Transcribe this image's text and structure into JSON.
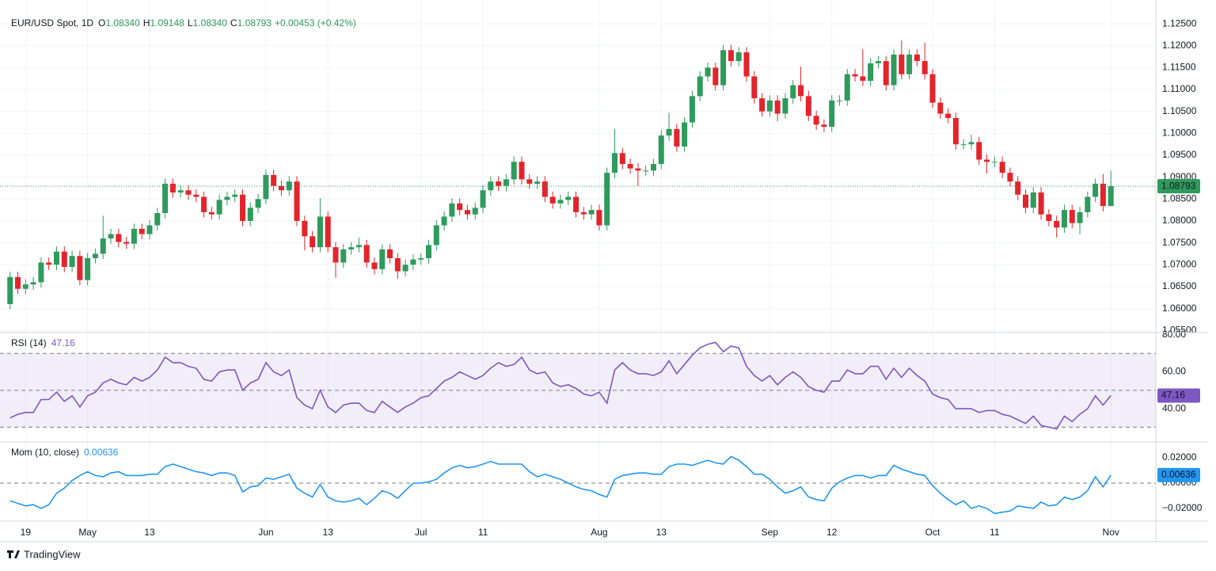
{
  "chart_data": [
    {
      "type": "candlestick",
      "title": "EUR/USD Spot, 1D",
      "header": [
        {
          "label": "O",
          "value": "1.08340"
        },
        {
          "label": "H",
          "value": "1.09148"
        },
        {
          "label": "L",
          "value": "1.08340"
        },
        {
          "label": "C",
          "value": "1.08793"
        }
      ],
      "change": "+0.00453 (+0.42%)",
      "up_color": "#2e9a5c",
      "down_color": "#e3242b",
      "xlim": [
        -1.3,
        147.8
      ],
      "xticks": [
        {
          "value": 2,
          "label": "19"
        },
        {
          "value": 10,
          "label": "May"
        },
        {
          "value": 18,
          "label": "13"
        },
        {
          "value": 33,
          "label": "Jun"
        },
        {
          "value": 41,
          "label": "13"
        },
        {
          "value": 53,
          "label": "Jul"
        },
        {
          "value": 61,
          "label": "11"
        },
        {
          "value": 76,
          "label": "Aug"
        },
        {
          "value": 84,
          "label": "13"
        },
        {
          "value": 98,
          "label": "Sep"
        },
        {
          "value": 106,
          "label": "12"
        },
        {
          "value": 119,
          "label": "Oct"
        },
        {
          "value": 127,
          "label": "11"
        },
        {
          "value": 142,
          "label": "Nov"
        }
      ],
      "ylim": [
        1.0545,
        1.129
      ],
      "yticks": [
        {
          "value": 1.055,
          "label": "1.05500"
        },
        {
          "value": 1.06,
          "label": "1.06000"
        },
        {
          "value": 1.065,
          "label": "1.06500"
        },
        {
          "value": 1.07,
          "label": "1.07000"
        },
        {
          "value": 1.075,
          "label": "1.07500"
        },
        {
          "value": 1.08,
          "label": "1.08000"
        },
        {
          "value": 1.085,
          "label": "1.08500"
        },
        {
          "value": 1.09,
          "label": "1.09000"
        },
        {
          "value": 1.095,
          "label": "1.09500"
        },
        {
          "value": 1.1,
          "label": "1.10000"
        },
        {
          "value": 1.105,
          "label": "1.10500"
        },
        {
          "value": 1.11,
          "label": "1.11000"
        },
        {
          "value": 1.115,
          "label": "1.11500"
        },
        {
          "value": 1.12,
          "label": "1.12000"
        },
        {
          "value": 1.125,
          "label": "1.12500"
        }
      ],
      "last_label": "1.08793",
      "open": [
        1.061,
        1.0672,
        1.0645,
        1.0655,
        1.066,
        1.0705,
        1.07,
        1.073,
        1.0695,
        1.072,
        1.0665,
        1.0715,
        1.0725,
        1.076,
        1.077,
        1.0752,
        1.0748,
        1.0782,
        1.077,
        1.079,
        1.0818,
        1.0885,
        1.0865,
        1.087,
        1.086,
        1.0855,
        1.082,
        1.0815,
        1.0848,
        1.0855,
        1.086,
        1.08,
        1.083,
        1.085,
        1.0905,
        1.088,
        1.087,
        1.089,
        1.08,
        1.0765,
        1.074,
        1.081,
        1.074,
        1.0705,
        1.0735,
        1.074,
        1.0745,
        1.0705,
        1.069,
        1.0735,
        1.0715,
        1.0685,
        1.07,
        1.0712,
        1.0715,
        1.0745,
        1.079,
        1.081,
        1.084,
        1.0825,
        1.0815,
        1.083,
        1.087,
        1.089,
        1.088,
        1.0895,
        1.0935,
        1.0895,
        1.0885,
        1.089,
        1.0855,
        1.084,
        1.0848,
        1.0855,
        1.082,
        1.0815,
        1.0825,
        1.079,
        1.091,
        1.0955,
        1.093,
        1.092,
        1.0915,
        1.0915,
        1.093,
        1.0995,
        1.101,
        1.097,
        1.1025,
        1.1085,
        1.113,
        1.115,
        1.111,
        1.119,
        1.1165,
        1.1185,
        1.113,
        1.108,
        1.105,
        1.1075,
        1.1045,
        1.108,
        1.111,
        1.1085,
        1.104,
        1.102,
        1.1015,
        1.1075,
        1.1075,
        1.1135,
        1.113,
        1.112,
        1.116,
        1.1165,
        1.111,
        1.118,
        1.1135,
        1.118,
        1.1165,
        1.1135,
        1.107,
        1.1045,
        1.1035,
        1.0975,
        1.0975,
        1.098,
        1.094,
        1.0935,
        1.0935,
        1.091,
        1.089,
        1.086,
        1.083,
        1.0865,
        1.0815,
        1.08,
        1.0785,
        1.0825,
        1.0795,
        1.082,
        1.0855,
        1.0885,
        1.0834
      ],
      "high": [
        1.0684,
        1.0684,
        1.0667,
        1.0672,
        1.0717,
        1.0717,
        1.0742,
        1.0742,
        1.0732,
        1.0732,
        1.0727,
        1.0737,
        1.0812,
        1.0782,
        1.0782,
        1.0764,
        1.0794,
        1.0794,
        1.0802,
        1.083,
        1.0897,
        1.0897,
        1.0882,
        1.0882,
        1.0872,
        1.0867,
        1.0832,
        1.086,
        1.0867,
        1.0872,
        1.0872,
        1.0842,
        1.0862,
        1.0917,
        1.0917,
        1.0892,
        1.0902,
        1.0902,
        1.0812,
        1.0777,
        1.0852,
        1.0822,
        1.0752,
        1.0747,
        1.0752,
        1.0762,
        1.0757,
        1.0717,
        1.0747,
        1.0747,
        1.0727,
        1.0712,
        1.0724,
        1.0727,
        1.0757,
        1.0802,
        1.0822,
        1.0852,
        1.0852,
        1.0837,
        1.0842,
        1.0882,
        1.0902,
        1.0902,
        1.0907,
        1.0947,
        1.0947,
        1.0907,
        1.0902,
        1.0902,
        1.0867,
        1.086,
        1.0867,
        1.0867,
        1.0832,
        1.0837,
        1.0837,
        1.0922,
        1.101,
        1.0967,
        1.0942,
        1.0932,
        1.0927,
        1.0942,
        1.1007,
        1.1047,
        1.1022,
        1.1037,
        1.1097,
        1.1142,
        1.1162,
        1.1162,
        1.1202,
        1.1202,
        1.1197,
        1.1197,
        1.1142,
        1.1092,
        1.1087,
        1.1087,
        1.1092,
        1.1122,
        1.1152,
        1.1097,
        1.1052,
        1.1032,
        1.1087,
        1.1087,
        1.1147,
        1.1147,
        1.1192,
        1.1172,
        1.1177,
        1.1177,
        1.1192,
        1.1212,
        1.1192,
        1.1192,
        1.1207,
        1.1147,
        1.1082,
        1.1057,
        1.1047,
        1.0987,
        1.0997,
        1.0992,
        1.0952,
        1.0947,
        1.0947,
        1.0922,
        1.0902,
        1.0872,
        1.0877,
        1.0877,
        1.0827,
        1.0812,
        1.0837,
        1.0837,
        1.0832,
        1.0867,
        1.0897,
        1.0907,
        1.09148
      ],
      "low": [
        1.0598,
        1.0633,
        1.0633,
        1.0643,
        1.0648,
        1.0688,
        1.0688,
        1.0683,
        1.0683,
        1.0653,
        1.0653,
        1.0703,
        1.0713,
        1.0748,
        1.074,
        1.0736,
        1.0736,
        1.0758,
        1.0758,
        1.0778,
        1.0806,
        1.0853,
        1.0853,
        1.0848,
        1.0843,
        1.0808,
        1.0803,
        1.0803,
        1.0836,
        1.0843,
        1.0788,
        1.0788,
        1.0818,
        1.0838,
        1.0868,
        1.0858,
        1.0858,
        1.0788,
        1.0733,
        1.0728,
        1.0728,
        1.0728,
        1.067,
        1.0693,
        1.0723,
        1.0728,
        1.0693,
        1.0678,
        1.0678,
        1.0703,
        1.0668,
        1.0673,
        1.0688,
        1.07,
        1.0703,
        1.0733,
        1.0778,
        1.0798,
        1.0813,
        1.0803,
        1.0803,
        1.0818,
        1.0858,
        1.0868,
        1.0868,
        1.0883,
        1.0883,
        1.0873,
        1.0873,
        1.0843,
        1.0828,
        1.0828,
        1.0836,
        1.0808,
        1.0803,
        1.0803,
        1.0778,
        1.0778,
        1.0898,
        1.0918,
        1.0908,
        1.088,
        1.0903,
        1.0903,
        1.0918,
        1.0983,
        1.0958,
        1.0958,
        1.1013,
        1.1073,
        1.1118,
        1.1098,
        1.1098,
        1.1153,
        1.1153,
        1.1118,
        1.1068,
        1.1038,
        1.1038,
        1.1028,
        1.1033,
        1.1068,
        1.1073,
        1.1028,
        1.1008,
        1.1003,
        1.1003,
        1.1063,
        1.1063,
        1.1118,
        1.1108,
        1.1108,
        1.1148,
        1.1098,
        1.1098,
        1.1123,
        1.1123,
        1.1153,
        1.1123,
        1.1058,
        1.1033,
        1.1023,
        1.0963,
        1.0963,
        1.0963,
        1.0928,
        1.0908,
        1.0923,
        1.0898,
        1.0878,
        1.0848,
        1.0818,
        1.0818,
        1.0803,
        1.0788,
        1.0762,
        1.0773,
        1.0783,
        1.077,
        1.0808,
        1.0843,
        1.0822,
        1.0834
      ],
      "close": [
        1.0672,
        1.0645,
        1.0655,
        1.066,
        1.0705,
        1.07,
        1.073,
        1.0695,
        1.072,
        1.0665,
        1.0715,
        1.0725,
        1.076,
        1.077,
        1.0752,
        1.0748,
        1.0782,
        1.077,
        1.079,
        1.0818,
        1.0885,
        1.0865,
        1.087,
        1.086,
        1.0855,
        1.082,
        1.0815,
        1.0848,
        1.0855,
        1.086,
        1.08,
        1.083,
        1.085,
        1.0905,
        1.088,
        1.087,
        1.089,
        1.08,
        1.0765,
        1.074,
        1.081,
        1.074,
        1.0705,
        1.0735,
        1.074,
        1.0745,
        1.0705,
        1.069,
        1.0735,
        1.0715,
        1.0685,
        1.07,
        1.0712,
        1.0715,
        1.0745,
        1.079,
        1.081,
        1.084,
        1.0825,
        1.0815,
        1.083,
        1.087,
        1.089,
        1.088,
        1.0895,
        1.0935,
        1.0895,
        1.0885,
        1.089,
        1.0855,
        1.084,
        1.0848,
        1.0855,
        1.082,
        1.0815,
        1.0825,
        1.079,
        1.091,
        1.0955,
        1.093,
        1.092,
        1.0915,
        1.0915,
        1.093,
        1.0995,
        1.101,
        1.097,
        1.1025,
        1.1085,
        1.113,
        1.115,
        1.111,
        1.119,
        1.1165,
        1.1185,
        1.113,
        1.108,
        1.105,
        1.1075,
        1.1045,
        1.108,
        1.111,
        1.1085,
        1.104,
        1.102,
        1.1015,
        1.1075,
        1.1075,
        1.1135,
        1.113,
        1.112,
        1.116,
        1.1165,
        1.111,
        1.118,
        1.1135,
        1.118,
        1.1165,
        1.1135,
        1.107,
        1.1045,
        1.1035,
        1.0975,
        1.0975,
        1.098,
        1.094,
        1.0935,
        1.0935,
        1.091,
        1.089,
        1.086,
        1.083,
        1.0865,
        1.0815,
        1.08,
        1.0785,
        1.0825,
        1.0795,
        1.082,
        1.0855,
        1.0885,
        1.0834,
        1.08793
      ]
    },
    {
      "type": "line",
      "title": "RSI (14)",
      "last_label": "47.16",
      "color": "#7e57c2",
      "fill_between": [
        30,
        70
      ],
      "xlim": [
        -1.3,
        147.8
      ],
      "ylim": [
        22,
        81.3
      ],
      "bands": [
        70,
        50,
        30
      ],
      "yticks": [
        {
          "value": 80,
          "label": "80.00"
        },
        {
          "value": 60,
          "label": "60.00"
        },
        {
          "value": 40,
          "label": "40.00"
        }
      ],
      "values": [
        35,
        37,
        38,
        38,
        45,
        45,
        49,
        44,
        47,
        41,
        47,
        49,
        54,
        56,
        54,
        53,
        57,
        55,
        57,
        61,
        68,
        65,
        65,
        63,
        62,
        56,
        55,
        60,
        61,
        61,
        50,
        54,
        56,
        65,
        60,
        58,
        61,
        46,
        42,
        40,
        50,
        41,
        38,
        42,
        43,
        43,
        39,
        38,
        44,
        41,
        38,
        41,
        43,
        46,
        47,
        51,
        55,
        57,
        60,
        58,
        56,
        58,
        62,
        65,
        63,
        64,
        68,
        61,
        59,
        60,
        54,
        52,
        53,
        51,
        48,
        47,
        49,
        43,
        61,
        65,
        61,
        59,
        59,
        58,
        60,
        66,
        59,
        64,
        69,
        73,
        75,
        76,
        71,
        74,
        73,
        63,
        58,
        55,
        58,
        53,
        57,
        60,
        57,
        52,
        50,
        49,
        55,
        55,
        61,
        59,
        59,
        63,
        63,
        56,
        62,
        57,
        62,
        58,
        55,
        48,
        46,
        45,
        40,
        40,
        40,
        38,
        39,
        39,
        37,
        36,
        34,
        32,
        36,
        31,
        30,
        29,
        36,
        33,
        37,
        40,
        47,
        42,
        47.16
      ]
    },
    {
      "type": "line",
      "title": "Mom (10, close)",
      "last_label": "0.00636",
      "color": "#2196f3",
      "xlim": [
        -1.3,
        147.8
      ],
      "ylim": [
        -0.03,
        0.0325
      ],
      "bands": [
        0
      ],
      "yticks": [
        {
          "value": 0.02,
          "label": "0.02000"
        },
        {
          "value": 0,
          "label": "0.00000"
        },
        {
          "value": -0.02,
          "label": "−0.02000"
        }
      ],
      "values": [
        -0.014,
        -0.016,
        -0.018,
        -0.017,
        -0.02,
        -0.017,
        -0.008,
        -0.004,
        0.002,
        0.006,
        0.009,
        0.006,
        0.005,
        0.008,
        0.009,
        0.006,
        0.006,
        0.006,
        0.007,
        0.007,
        0.013,
        0.015,
        0.013,
        0.011,
        0.009,
        0.008,
        0.006,
        0.008,
        0.008,
        0.006,
        -0.007,
        -0.003,
        -0.002,
        0.004,
        0.003,
        0.005,
        0.007,
        -0.004,
        -0.008,
        -0.011,
        -0.001,
        -0.011,
        -0.014,
        -0.015,
        -0.014,
        -0.012,
        -0.017,
        -0.012,
        -0.006,
        -0.008,
        -0.012,
        -0.006,
        0.0,
        0.0,
        0.001,
        0.003,
        0.008,
        0.012,
        0.014,
        0.012,
        0.013,
        0.015,
        0.017,
        0.015,
        0.015,
        0.015,
        0.015,
        0.009,
        0.005,
        0.007,
        0.005,
        0.003,
        0.0,
        -0.003,
        -0.005,
        -0.006,
        -0.009,
        -0.011,
        0.003,
        0.006,
        0.007,
        0.008,
        0.008,
        0.007,
        0.007,
        0.013,
        0.015,
        0.015,
        0.014,
        0.016,
        0.018,
        0.016,
        0.015,
        0.021,
        0.018,
        0.013,
        0.007,
        0.007,
        0.003,
        -0.003,
        -0.008,
        -0.006,
        -0.003,
        -0.011,
        -0.013,
        -0.014,
        -0.004,
        0.001,
        0.004,
        0.006,
        0.006,
        0.004,
        0.006,
        0.006,
        0.014,
        0.011,
        0.009,
        0.007,
        0.006,
        -0.002,
        -0.008,
        -0.013,
        -0.017,
        -0.014,
        -0.02,
        -0.018,
        -0.02,
        -0.024,
        -0.023,
        -0.022,
        -0.018,
        -0.019,
        -0.02,
        -0.015,
        -0.018,
        -0.017,
        -0.011,
        -0.013,
        -0.011,
        -0.006,
        0.005,
        -0.003,
        0.00636
      ]
    }
  ],
  "footer": {
    "brand": "TradingView"
  }
}
